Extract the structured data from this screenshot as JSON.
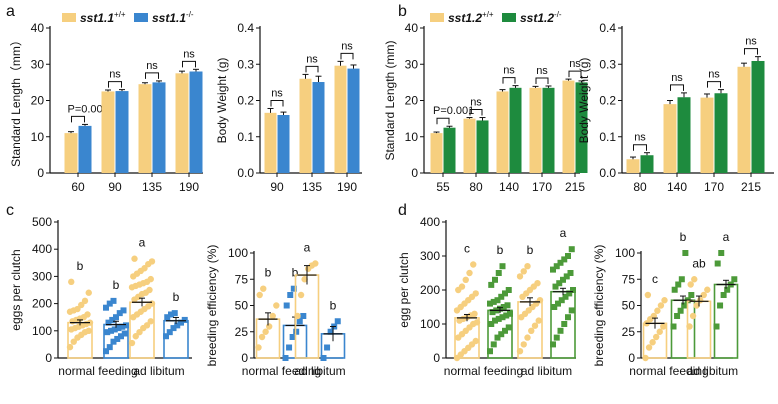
{
  "colors": {
    "wt": "#f6cf7f",
    "ko_a": "#3a86cf",
    "ko_b": "#1e8b3e",
    "ko_b_dots": "#4b9a3a",
    "ko_d": "#4c9a39"
  },
  "chart_data": [
    {
      "id": "a1",
      "type": "bar",
      "panel_label": "a",
      "legend": [
        "sst1.1",
        "sst1.1"
      ],
      "legend_superscripts": [
        "+/+",
        "-/-"
      ],
      "ylabel": "Standard Length（mm）",
      "ylim": [
        0,
        40
      ],
      "yticks": [
        0,
        10,
        20,
        30,
        40
      ],
      "categories": [
        "60",
        "90",
        "135",
        "190"
      ],
      "series": [
        {
          "name": "sst1.1 +/+",
          "values": [
            11.0,
            22.5,
            24.5,
            27.5
          ],
          "errors": [
            0.4,
            0.4,
            0.4,
            0.6
          ]
        },
        {
          "name": "sst1.1 -/-",
          "values": [
            13.0,
            22.6,
            25.0,
            28.0
          ],
          "errors": [
            0.4,
            0.4,
            0.4,
            0.6
          ]
        }
      ],
      "annotations": [
        "P=0.000",
        "ns",
        "ns",
        "ns"
      ]
    },
    {
      "id": "a2",
      "type": "bar",
      "ylabel": "Body Weight  (g)",
      "ylim": [
        0,
        0.4
      ],
      "yticks": [
        "0.0",
        "0.1",
        "0.2",
        "0.3",
        "0.4"
      ],
      "categories": [
        "90",
        "135",
        "190"
      ],
      "series": [
        {
          "name": "sst1.1 +/+",
          "values": [
            0.166,
            0.26,
            0.296
          ],
          "errors": [
            0.012,
            0.012,
            0.012
          ]
        },
        {
          "name": "sst1.1 -/-",
          "values": [
            0.16,
            0.251,
            0.288
          ],
          "errors": [
            0.008,
            0.016,
            0.01
          ]
        }
      ],
      "annotations": [
        "ns",
        "ns",
        "ns"
      ]
    },
    {
      "id": "b1",
      "type": "bar",
      "panel_label": "b",
      "legend": [
        "sst1.2",
        "sst1.2"
      ],
      "legend_superscripts": [
        "+/+",
        "-/-"
      ],
      "ylabel": "Standard Length (mm)",
      "ylim": [
        0,
        40
      ],
      "yticks": [
        0,
        10,
        20,
        30,
        40
      ],
      "categories": [
        "55",
        "80",
        "140",
        "170",
        "215"
      ],
      "series": [
        {
          "name": "sst1.2 +/+",
          "values": [
            11.0,
            15.0,
            22.5,
            23.5,
            25.5
          ],
          "errors": [
            0.3,
            0.3,
            0.5,
            0.4,
            0.4
          ]
        },
        {
          "name": "sst1.2 -/-",
          "values": [
            12.5,
            14.5,
            23.5,
            23.5,
            25.0
          ],
          "errors": [
            0.4,
            0.8,
            0.6,
            0.5,
            0.4
          ]
        }
      ],
      "annotations": [
        "P=0.001",
        "ns",
        "ns",
        "ns",
        "ns"
      ]
    },
    {
      "id": "b2",
      "type": "bar",
      "ylabel": "Body Weight (g)",
      "ylim": [
        0,
        0.4
      ],
      "yticks": [
        "0.0",
        "0.1",
        "0.2",
        "0.3",
        "0.4"
      ],
      "categories": [
        "80",
        "140",
        "170",
        "215"
      ],
      "series": [
        {
          "name": "sst1.2 +/+",
          "values": [
            0.038,
            0.19,
            0.208,
            0.293
          ],
          "errors": [
            0.006,
            0.01,
            0.01,
            0.01
          ]
        },
        {
          "name": "sst1.2 -/-",
          "values": [
            0.049,
            0.209,
            0.22,
            0.309
          ],
          "errors": [
            0.007,
            0.012,
            0.01,
            0.012
          ]
        }
      ],
      "annotations": [
        "ns",
        "ns",
        "ns",
        "ns"
      ]
    },
    {
      "id": "c1",
      "type": "bar",
      "panel_label": "c",
      "ylabel": "eggs per clutch",
      "ylim": [
        0,
        500
      ],
      "yticks": [
        0,
        100,
        200,
        300,
        400,
        500
      ],
      "categories": [
        "normal feeding",
        "ad libitum"
      ],
      "series": [
        {
          "name": "sst1.1 +/+",
          "values": [
            130,
            205
          ],
          "errors": [
            10,
            15
          ]
        },
        {
          "name": "sst1.1 -/-",
          "values": [
            123,
            137
          ],
          "errors": [
            12,
            12
          ]
        }
      ],
      "points": [
        [
          40,
          60,
          75,
          85,
          95,
          100,
          105,
          110,
          115,
          120,
          125,
          130,
          135,
          140,
          145,
          150,
          160,
          170,
          175,
          180,
          195,
          210,
          240,
          280
        ],
        [
          25,
          40,
          60,
          70,
          80,
          90,
          95,
          100,
          105,
          110,
          115,
          120,
          130,
          140,
          150,
          165,
          175,
          185,
          200,
          210
        ],
        [
          55,
          80,
          95,
          110,
          120,
          135,
          150,
          160,
          170,
          180,
          190,
          200,
          215,
          225,
          235,
          240,
          250,
          260,
          265,
          270,
          275,
          280,
          290,
          300,
          310,
          320,
          330,
          345,
          355,
          365
        ],
        [
          80,
          95,
          110,
          120,
          130,
          140,
          150,
          160,
          165
        ]
      ],
      "letters": [
        "b",
        "b",
        "a",
        "b"
      ]
    },
    {
      "id": "c2",
      "type": "bar",
      "ylabel": "breeding efficiency (%)",
      "ylim": [
        0,
        100
      ],
      "yticks": [
        0,
        25,
        50,
        75,
        100
      ],
      "categories": [
        "normal feeding",
        "ad libitum"
      ],
      "series": [
        {
          "name": "sst1.1 +/+",
          "values": [
            37,
            79
          ],
          "errors": [
            6,
            9
          ]
        },
        {
          "name": "sst1.1 -/-",
          "values": [
            31,
            23
          ],
          "errors": [
            8,
            7
          ]
        }
      ],
      "points": [
        [
          10,
          20,
          25,
          30,
          40,
          50,
          60,
          66
        ],
        [
          0,
          10,
          20,
          25,
          35,
          40,
          50,
          60,
          66
        ],
        [
          40,
          60,
          75,
          85,
          88,
          90
        ],
        [
          0,
          10,
          25,
          30,
          35
        ]
      ],
      "letters": [
        "b",
        "b",
        "a",
        "b"
      ]
    },
    {
      "id": "d1",
      "type": "bar",
      "panel_label": "d",
      "ylabel": "egg per clutch",
      "ylim": [
        0,
        400
      ],
      "yticks": [
        0,
        100,
        200,
        300,
        400
      ],
      "categories": [
        "normal feeding",
        "ad libitum"
      ],
      "series": [
        {
          "name": "sst1.2 +/+",
          "values": [
            118,
            165
          ],
          "errors": [
            10,
            12
          ]
        },
        {
          "name": "sst1.2 -/-",
          "values": [
            140,
            195
          ],
          "errors": [
            8,
            10
          ]
        }
      ],
      "points": [
        [
          0,
          10,
          20,
          30,
          40,
          50,
          60,
          70,
          80,
          90,
          100,
          105,
          110,
          115,
          120,
          125,
          130,
          140,
          150,
          160,
          170,
          180,
          190,
          200,
          210,
          230,
          250,
          275
        ],
        [
          20,
          40,
          60,
          70,
          80,
          90,
          100,
          110,
          115,
          120,
          125,
          130,
          135,
          140,
          145,
          150,
          155,
          160,
          165,
          170,
          180,
          190,
          200,
          215,
          230,
          250,
          270
        ],
        [
          20,
          40,
          60,
          80,
          95,
          110,
          120,
          130,
          140,
          150,
          160,
          170,
          180,
          190,
          200,
          210,
          220,
          240,
          255,
          270
        ],
        [
          40,
          60,
          80,
          100,
          120,
          140,
          150,
          160,
          170,
          180,
          190,
          200,
          210,
          220,
          230,
          240,
          250,
          260,
          270,
          280,
          290,
          300,
          320
        ]
      ],
      "letters": [
        "c",
        "b",
        "b",
        "a"
      ]
    },
    {
      "id": "d2",
      "type": "bar",
      "ylabel": "breeding efficiency (%)",
      "ylim": [
        0,
        100
      ],
      "yticks": [
        0,
        25,
        50,
        75,
        100
      ],
      "categories": [
        "normal feeding",
        "ad libitum"
      ],
      "series": [
        {
          "name": "sst1.2 +/+",
          "values": [
            33,
            54
          ],
          "errors": [
            5,
            5
          ]
        },
        {
          "name": "sst1.2 -/-",
          "values": [
            55,
            70
          ],
          "errors": [
            4,
            4
          ]
        }
      ],
      "points": [
        [
          0,
          10,
          15,
          20,
          25,
          30,
          33,
          37,
          40,
          45,
          50,
          55,
          60
        ],
        [
          30,
          40,
          45,
          50,
          55,
          60,
          65,
          70,
          75,
          100
        ],
        [
          30,
          40,
          50,
          55,
          60,
          65,
          70,
          75
        ],
        [
          30,
          50,
          60,
          65,
          70,
          75,
          90,
          100
        ]
      ],
      "letters": [
        "c",
        "b",
        "ab",
        "a"
      ]
    }
  ]
}
